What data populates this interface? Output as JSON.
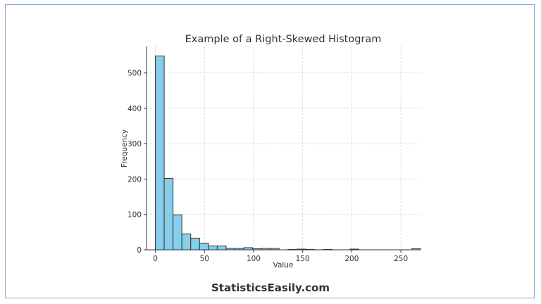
{
  "brand": {
    "text": "StatisticsEasily.com"
  },
  "colors": {
    "bar_fill": "#87ceeb",
    "bar_edge": "#333333",
    "grid": "#d4d4d4",
    "text": "#333333"
  },
  "chart_data": {
    "type": "bar",
    "title": "Example of a Right-Skewed Histogram",
    "xlabel": "Value",
    "ylabel": "Frequency",
    "xlim": [
      -9,
      270
    ],
    "ylim": [
      0,
      575
    ],
    "xticks": [
      0,
      50,
      100,
      150,
      200,
      250
    ],
    "yticks": [
      0,
      100,
      200,
      300,
      400,
      500
    ],
    "grid": true,
    "bin_edges": [
      0,
      9,
      18,
      27,
      36,
      45,
      54,
      63,
      72,
      81,
      90,
      99,
      108,
      117,
      126,
      135,
      144,
      153,
      162,
      171,
      180,
      189,
      198,
      207,
      216,
      225,
      234,
      243,
      252,
      261
    ],
    "values": [
      548,
      202,
      99,
      45,
      33,
      19,
      11,
      11,
      4,
      4,
      6,
      3,
      4,
      4,
      0,
      1,
      2,
      1,
      0,
      1,
      0,
      0,
      2,
      0,
      0,
      0,
      0,
      0,
      0,
      3
    ]
  }
}
